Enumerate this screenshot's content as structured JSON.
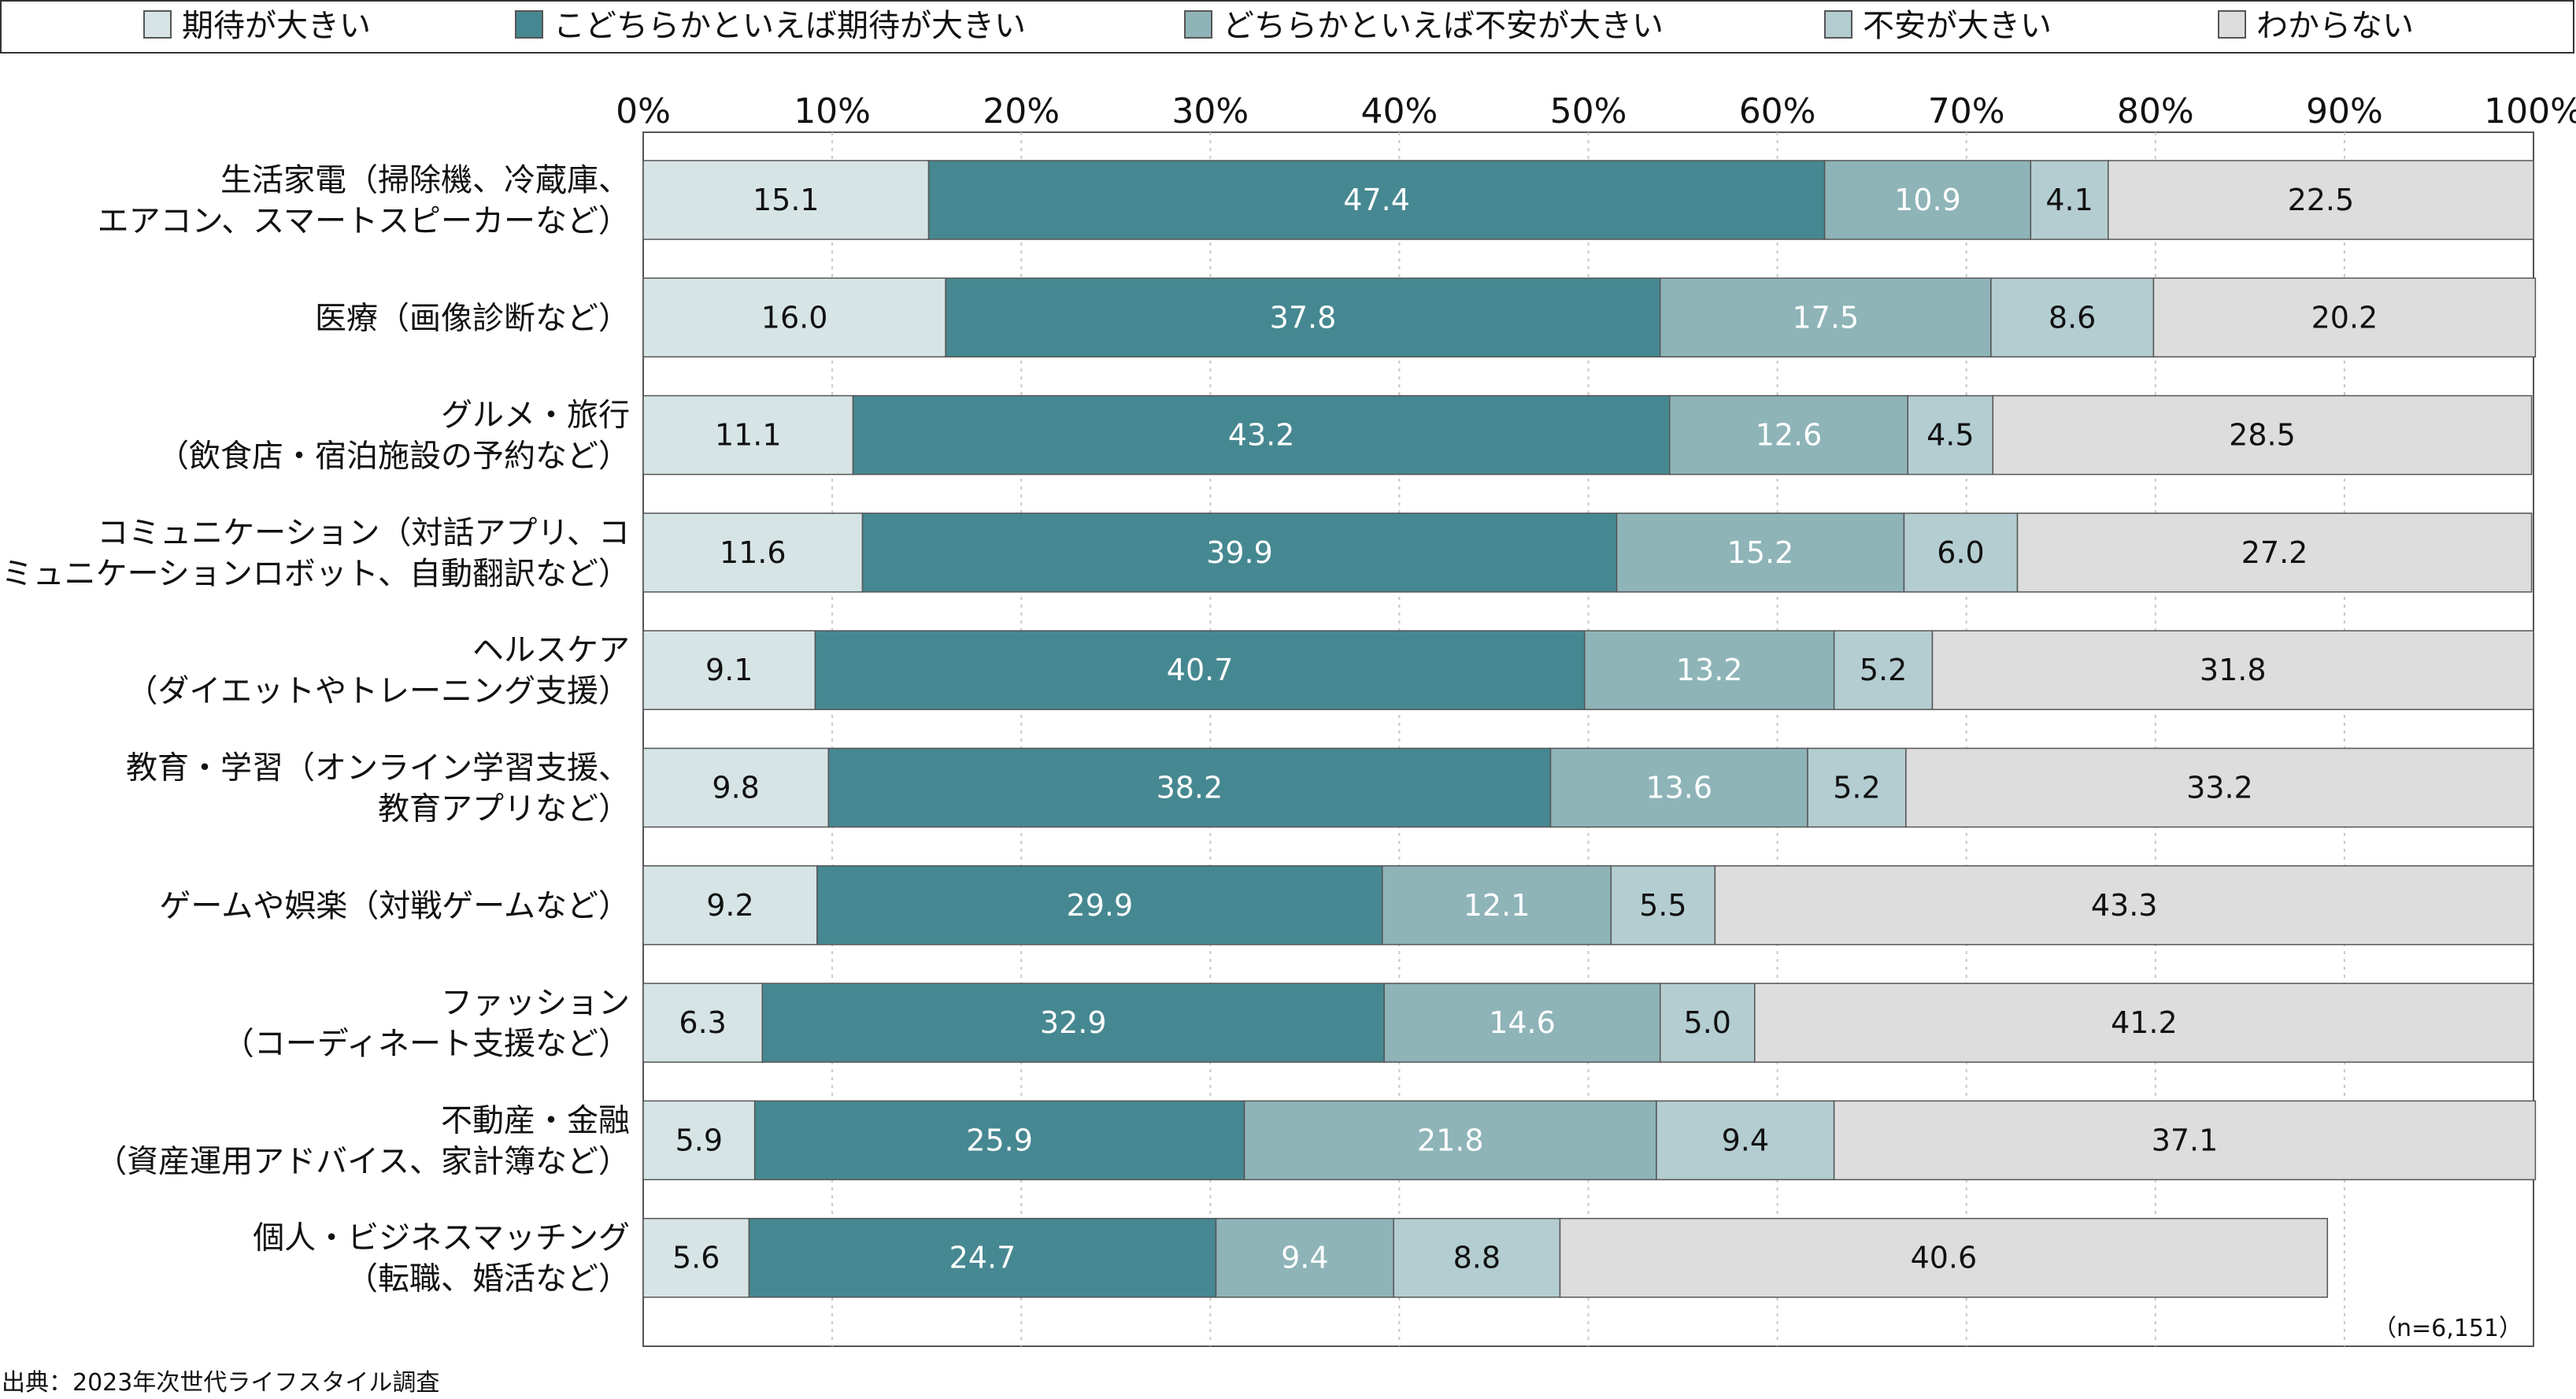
{
  "chart_data": {
    "type": "bar",
    "orientation": "horizontal",
    "stacked": true,
    "percent_stacked": true,
    "categories": [
      [
        "生活家電（掃除機、冷蔵庫、",
        "エアコン、スマートスピーカーなど）"
      ],
      [
        "医療（画像診断など）"
      ],
      [
        "グルメ・旅行",
        "（飲食店・宿泊施設の予約など）"
      ],
      [
        "コミュニケーション（対話アプリ、コ",
        "ミュニケーションロボット、自動翻訳など）"
      ],
      [
        "ヘルスケア",
        "（ダイエットやトレーニング支援）"
      ],
      [
        "教育・学習（オンライン学習支援、",
        "教育アプリなど）"
      ],
      [
        "ゲームや娯楽（対戦ゲームなど）"
      ],
      [
        "ファッション",
        "（コーディネート支援など）"
      ],
      [
        "不動産・金融",
        "（資産運用アドバイス、家計簿など）"
      ],
      [
        "個人・ビジネスマッチング",
        "（転職、婚活など）"
      ]
    ],
    "series": [
      {
        "name": "期待が大きい",
        "color": "#d6e4e6",
        "label_color": "#111111",
        "values": [
          15.1,
          16.0,
          11.1,
          11.6,
          9.1,
          9.8,
          9.2,
          6.3,
          5.9,
          5.6
        ],
        "labels": [
          "15.1",
          "16.0",
          "11.1",
          "11.6",
          "9.1",
          "9.8",
          "9.2",
          "6.3",
          "5.9",
          "5.6"
        ]
      },
      {
        "name": "こどちらかといえば期待が大きい",
        "color": "#468891",
        "label_color": "#ffffff",
        "values": [
          47.4,
          37.8,
          43.2,
          39.9,
          40.7,
          38.2,
          29.9,
          32.9,
          25.9,
          24.7
        ],
        "labels": [
          "47.4",
          "37.8",
          "43.2",
          "39.9",
          "40.7",
          "38.2",
          "29.9",
          "32.9",
          "25.9",
          "24.7"
        ]
      },
      {
        "name": "どちらかといえば不安が大きい",
        "color": "#8eb4b8",
        "label_color": "#ffffff",
        "values": [
          10.9,
          17.5,
          12.6,
          15.2,
          13.2,
          13.6,
          12.1,
          14.6,
          21.8,
          9.4
        ],
        "labels": [
          "10.9",
          "17.5",
          "12.6",
          "15.2",
          "13.2",
          "13.6",
          "12.1",
          "14.6",
          "21.8",
          "9.4"
        ]
      },
      {
        "name": "不安が大きい",
        "color": "#b3cdd1",
        "label_color": "#111111",
        "values": [
          4.1,
          8.6,
          4.5,
          6.0,
          5.2,
          5.2,
          5.5,
          5.0,
          9.4,
          8.8
        ],
        "labels": [
          "4.1",
          "8.6",
          "4.5",
          "6.0",
          "5.2",
          "5.2",
          "5.5",
          "5.0",
          "9.4",
          "8.8"
        ]
      },
      {
        "name": "わからない",
        "color": "#dddddd",
        "label_color": "#111111",
        "values": [
          22.5,
          20.2,
          28.5,
          27.2,
          31.8,
          33.2,
          43.3,
          41.2,
          37.1,
          40.6
        ],
        "labels": [
          "22.5",
          "20.2",
          "28.5",
          "27.2",
          "31.8",
          "33.2",
          "43.3",
          "41.2",
          "37.1",
          "40.6"
        ]
      }
    ],
    "xlim": [
      0,
      100
    ],
    "x_ticks": [
      "0%",
      "10%",
      "20%",
      "30%",
      "40%",
      "50%",
      "60%",
      "70%",
      "80%",
      "90%",
      "100%"
    ],
    "grid": "vertical-dashed",
    "legend_position": "top",
    "sample_note": "（n=6,151）",
    "source": "出典：2023年次世代ライフスタイル調査"
  }
}
